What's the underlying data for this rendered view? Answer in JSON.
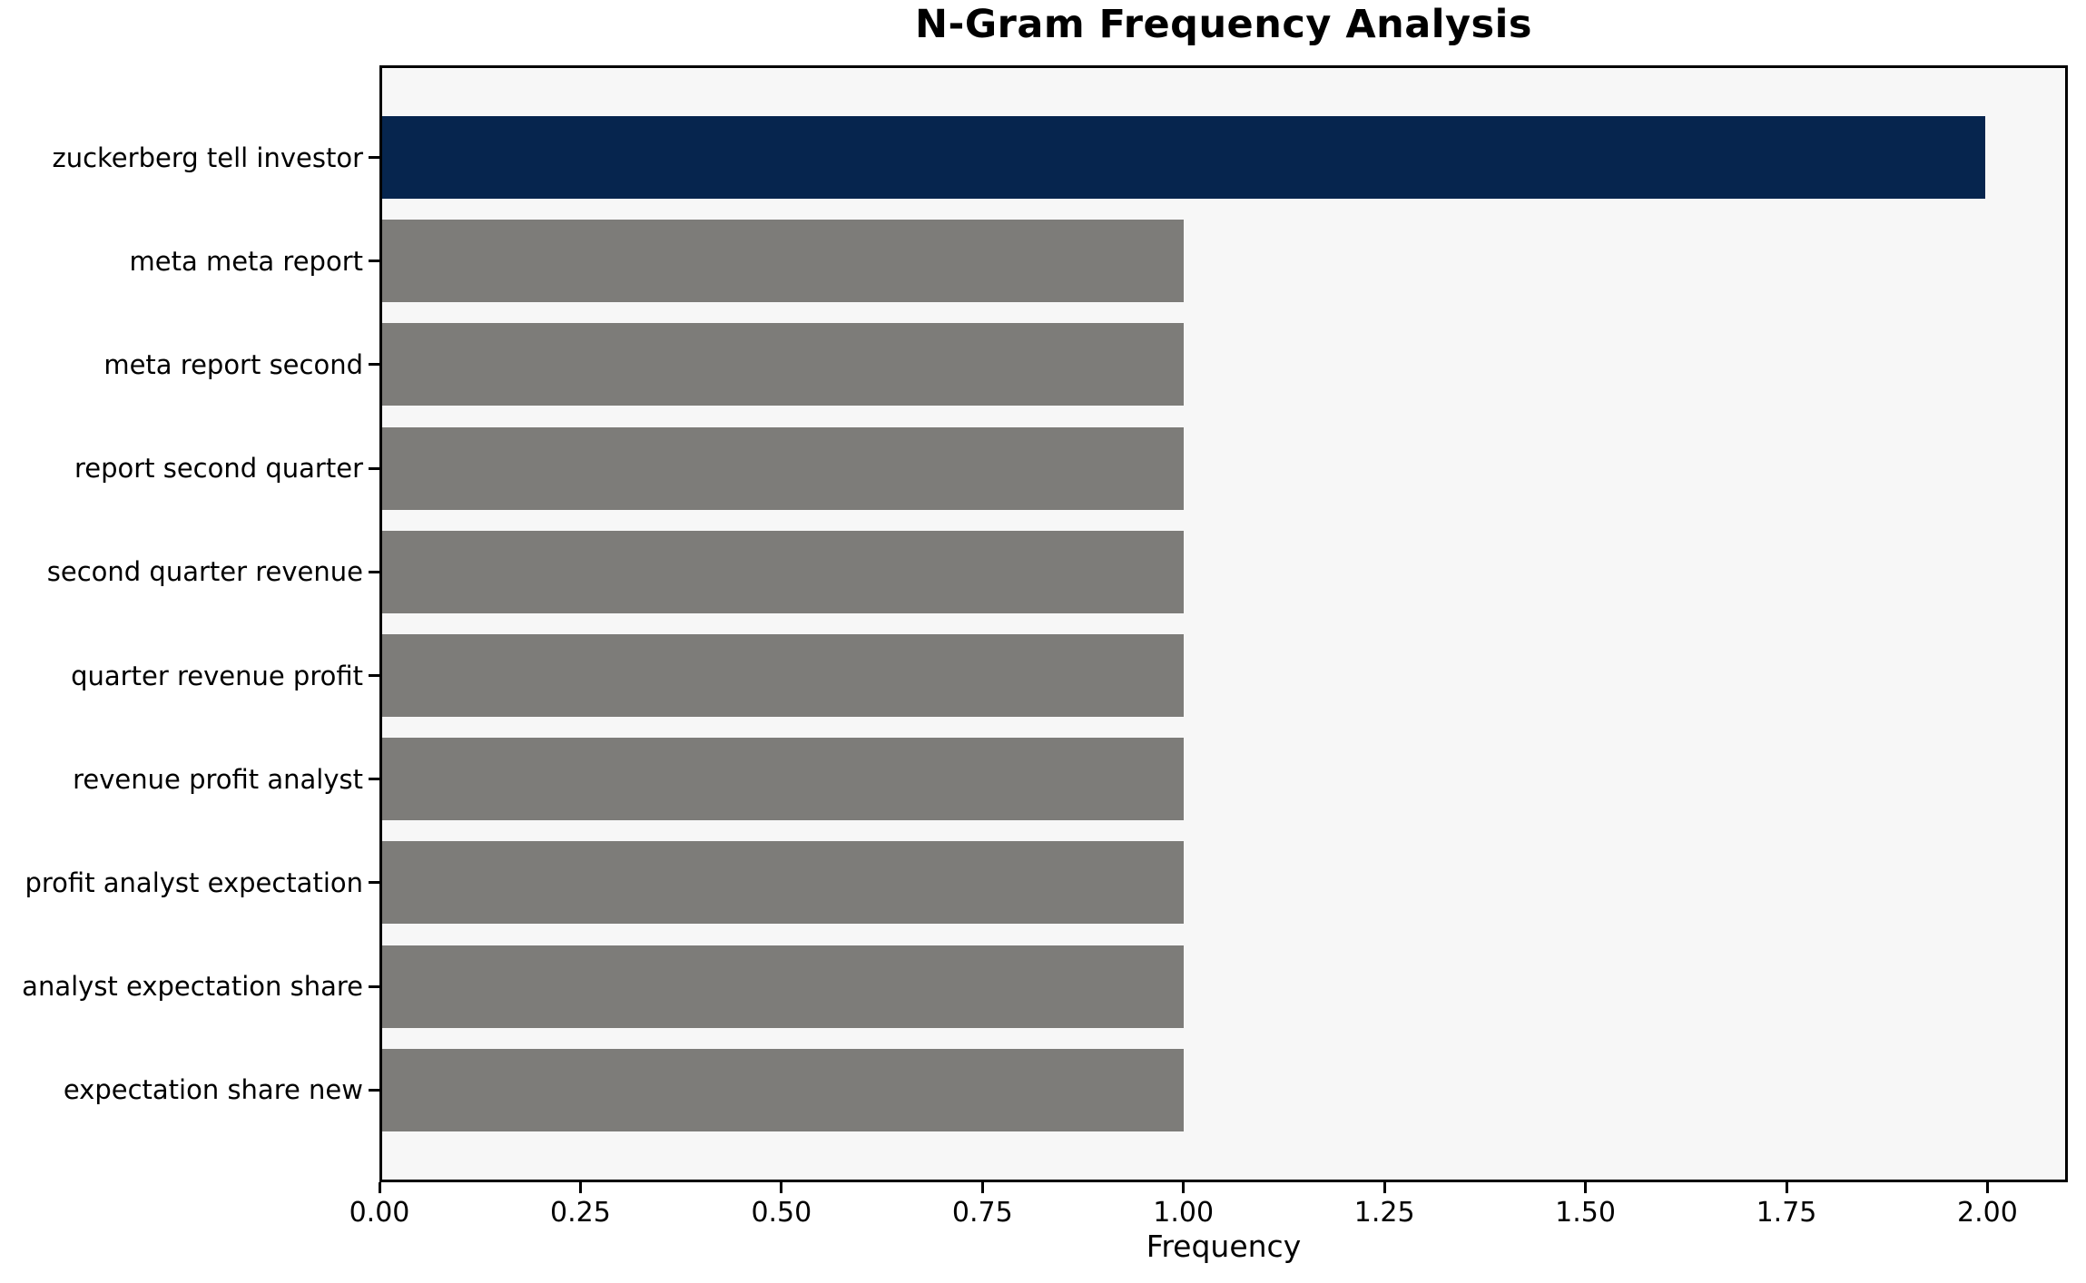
{
  "chart_data": {
    "type": "bar",
    "orientation": "horizontal",
    "title": "N-Gram Frequency Analysis",
    "xlabel": "Frequency",
    "ylabel": "",
    "categories": [
      "zuckerberg tell investor",
      "meta meta report",
      "meta report second",
      "report second quarter",
      "second quarter revenue",
      "quarter revenue profit",
      "revenue profit analyst",
      "profit analyst expectation",
      "analyst expectation share",
      "expectation share new"
    ],
    "values": [
      2,
      1,
      1,
      1,
      1,
      1,
      1,
      1,
      1,
      1
    ],
    "xlim": [
      0,
      2.1
    ],
    "xticks": [
      0,
      0.25,
      0.5,
      0.75,
      1.0,
      1.25,
      1.5,
      1.75,
      2.0
    ],
    "xtick_labels": [
      "0.00",
      "0.25",
      "0.50",
      "0.75",
      "1.00",
      "1.25",
      "1.50",
      "1.75",
      "2.00"
    ],
    "bar_colors": [
      "#06254e",
      "#7d7c79",
      "#7d7c79",
      "#7d7c79",
      "#7d7c79",
      "#7d7c79",
      "#7d7c79",
      "#7d7c79",
      "#7d7c79",
      "#7d7c79"
    ],
    "colors": {
      "highlight_bar": "#06254e",
      "default_bar": "#7d7c79",
      "plot_background": "#f7f7f7",
      "figure_background": "#ffffff",
      "axis_line": "#000000",
      "text": "#000000"
    },
    "grid": false,
    "legend": null
  }
}
